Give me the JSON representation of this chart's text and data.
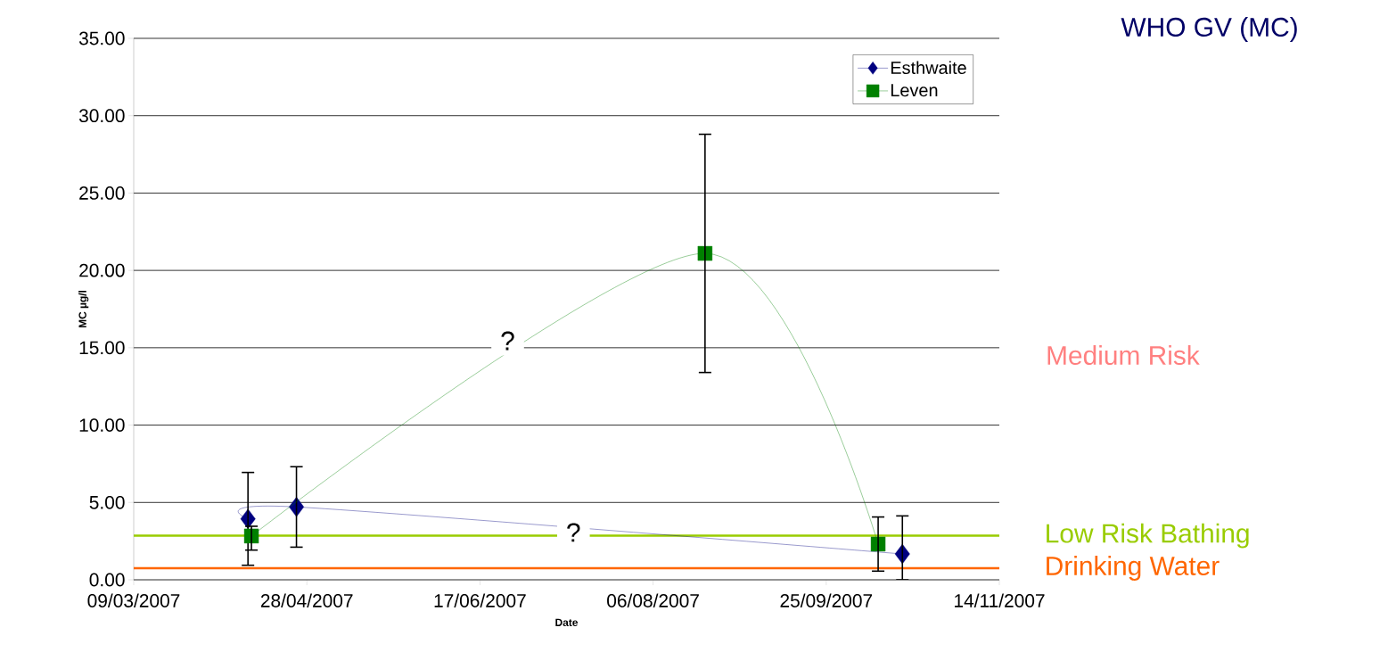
{
  "chart_data": {
    "type": "line",
    "title": "WHO GV (MC)",
    "xlabel": "Date",
    "ylabel": "MC µg/l",
    "series": [
      {
        "name": "Esthwaite",
        "color": "#000080",
        "marker": "diamond",
        "x": [
          "2007-04-11",
          "2007-04-25",
          "2007-10-17"
        ],
        "values": [
          3.94,
          4.71,
          1.67
        ],
        "errors": [
          3.0,
          2.6,
          [
            0,
            4.13
          ]
        ]
      },
      {
        "name": "Leven",
        "color": "#008000",
        "marker": "square",
        "x": [
          "2007-04-12",
          "2007-08-21",
          "2007-10-10"
        ],
        "values": [
          2.83,
          21.1,
          2.31
        ],
        "errors": [
          [
            1.92,
            3.46
          ],
          7.7,
          1.75
        ]
      }
    ],
    "xlim": [
      "2007-03-09",
      "2007-11-14"
    ],
    "xticks": [
      {
        "value": "2007-03-09",
        "label": "09/03/2007"
      },
      {
        "value": "2007-04-28",
        "label": "28/04/2007"
      },
      {
        "value": "2007-06-17",
        "label": "17/06/2007"
      },
      {
        "value": "2007-08-06",
        "label": "06/08/2007"
      },
      {
        "value": "2007-09-25",
        "label": "25/09/2007"
      },
      {
        "value": "2007-11-14",
        "label": "14/11/2007"
      }
    ],
    "ylim": [
      0,
      35
    ],
    "yticks": [
      {
        "value": 0,
        "label": "0.00"
      },
      {
        "value": 5,
        "label": "5.00"
      },
      {
        "value": 10,
        "label": "10.00"
      },
      {
        "value": 15,
        "label": "15.00"
      },
      {
        "value": 20,
        "label": "20.00"
      },
      {
        "value": 25,
        "label": "25.00"
      },
      {
        "value": 30,
        "label": "30.00"
      },
      {
        "value": 35,
        "label": "35.00"
      }
    ],
    "grid": "y",
    "legend": "top right",
    "ref_lines": [
      {
        "axis": "y",
        "value": 2.85,
        "label": "Low Risk Bathing",
        "color": "#99cc00"
      },
      {
        "axis": "y",
        "value": 0.75,
        "label": "Drinking Water",
        "color": "#ff6600"
      }
    ],
    "annotations": [
      {
        "text": "?",
        "x": "2007-06-25",
        "y": 15.45
      },
      {
        "text": "?",
        "x": "2007-07-14",
        "y": 3.06
      },
      "Medium Risk"
    ]
  }
}
